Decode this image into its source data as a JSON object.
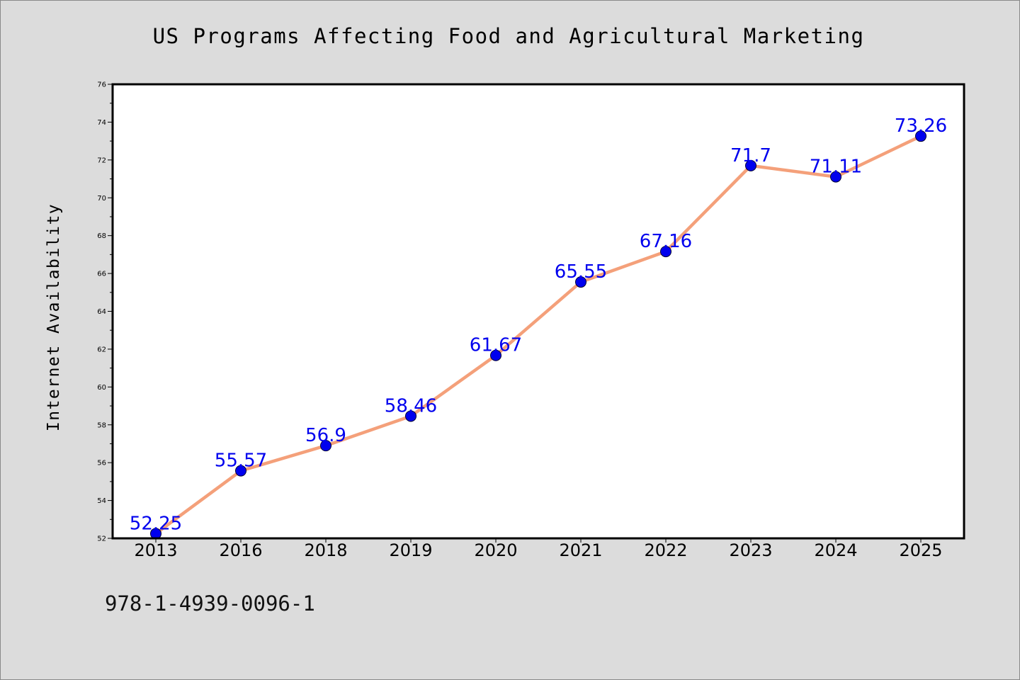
{
  "chart_data": {
    "type": "line",
    "title": "US Programs Affecting Food and Agricultural Marketing",
    "xlabel": "",
    "ylabel": "Internet Availability",
    "categories": [
      "2013",
      "2016",
      "2018",
      "2019",
      "2020",
      "2021",
      "2022",
      "2023",
      "2024",
      "2025"
    ],
    "series": [
      {
        "values": [
          52.25,
          55.57,
          56.9,
          58.46,
          61.67,
          65.55,
          67.16,
          71.7,
          71.11,
          73.26
        ],
        "labels": [
          "52.25",
          "55.57",
          "56.9",
          "58.46",
          "61.67",
          "65.55",
          "67.16",
          "71.7",
          "71.11",
          "73.26"
        ],
        "line_color": "#f4a07a",
        "marker_color": "#0000ee"
      }
    ],
    "ylim": [
      52,
      76
    ],
    "yticks": [
      "52",
      "54",
      "56",
      "58",
      "60",
      "62",
      "64",
      "66",
      "68",
      "70",
      "72",
      "74",
      "76"
    ],
    "grid": false,
    "legend": "none"
  },
  "footer": {
    "isbn": "978-1-4939-0096-1"
  },
  "colors": {
    "background": "#dcdcdc",
    "plot_background": "#ffffff",
    "label": "#0000ee"
  }
}
